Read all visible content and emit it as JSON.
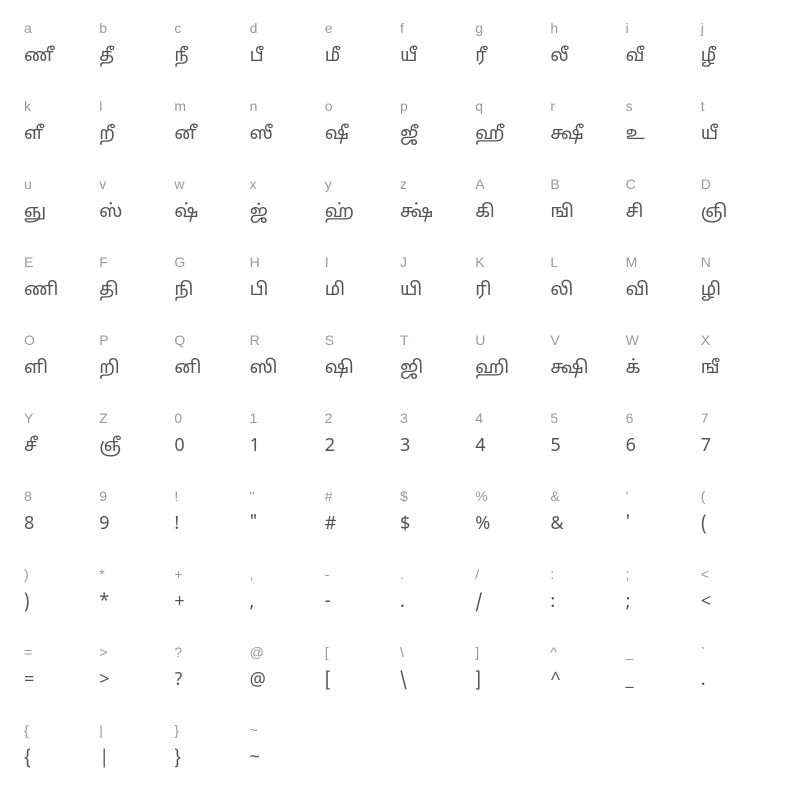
{
  "characters": [
    {
      "key": "a",
      "glyph": "ணீ"
    },
    {
      "key": "b",
      "glyph": "தீ"
    },
    {
      "key": "c",
      "glyph": "நீ"
    },
    {
      "key": "d",
      "glyph": "பீ"
    },
    {
      "key": "e",
      "glyph": "மீ"
    },
    {
      "key": "f",
      "glyph": "யீ"
    },
    {
      "key": "g",
      "glyph": "ரீ"
    },
    {
      "key": "h",
      "glyph": "லீ"
    },
    {
      "key": "i",
      "glyph": "வீ"
    },
    {
      "key": "j",
      "glyph": "ழீ"
    },
    {
      "key": "k",
      "glyph": "ளீ"
    },
    {
      "key": "l",
      "glyph": "றீ"
    },
    {
      "key": "m",
      "glyph": "னீ"
    },
    {
      "key": "n",
      "glyph": "ஸீ"
    },
    {
      "key": "o",
      "glyph": "ஷீ"
    },
    {
      "key": "p",
      "glyph": "ஜீ"
    },
    {
      "key": "q",
      "glyph": "ஹீ"
    },
    {
      "key": "r",
      "glyph": "க்ஷீ"
    },
    {
      "key": "s",
      "glyph": "உ"
    },
    {
      "key": "t",
      "glyph": "யீ"
    },
    {
      "key": "u",
      "glyph": "ஞு"
    },
    {
      "key": "v",
      "glyph": "ஸ்"
    },
    {
      "key": "w",
      "glyph": "ஷ்"
    },
    {
      "key": "x",
      "glyph": "ஜ்"
    },
    {
      "key": "y",
      "glyph": "ஹ்"
    },
    {
      "key": "z",
      "glyph": "க்ஷ்"
    },
    {
      "key": "A",
      "glyph": "கி"
    },
    {
      "key": "B",
      "glyph": "ஙி"
    },
    {
      "key": "C",
      "glyph": "சி"
    },
    {
      "key": "D",
      "glyph": "ஞி"
    },
    {
      "key": "E",
      "glyph": "ணி"
    },
    {
      "key": "F",
      "glyph": "தி"
    },
    {
      "key": "G",
      "glyph": "நி"
    },
    {
      "key": "H",
      "glyph": "பி"
    },
    {
      "key": "I",
      "glyph": "மி"
    },
    {
      "key": "J",
      "glyph": "யி"
    },
    {
      "key": "K",
      "glyph": "ரி"
    },
    {
      "key": "L",
      "glyph": "லி"
    },
    {
      "key": "M",
      "glyph": "வி"
    },
    {
      "key": "N",
      "glyph": "ழி"
    },
    {
      "key": "O",
      "glyph": "ளி"
    },
    {
      "key": "P",
      "glyph": "றி"
    },
    {
      "key": "Q",
      "glyph": "னி"
    },
    {
      "key": "R",
      "glyph": "ஸி"
    },
    {
      "key": "S",
      "glyph": "ஷி"
    },
    {
      "key": "T",
      "glyph": "ஜி"
    },
    {
      "key": "U",
      "glyph": "ஹி"
    },
    {
      "key": "V",
      "glyph": "க்ஷி"
    },
    {
      "key": "W",
      "glyph": "க்"
    },
    {
      "key": "X",
      "glyph": "ஙீ"
    },
    {
      "key": "Y",
      "glyph": "சீ"
    },
    {
      "key": "Z",
      "glyph": "ஞீ"
    },
    {
      "key": "0",
      "glyph": "0"
    },
    {
      "key": "1",
      "glyph": "1"
    },
    {
      "key": "2",
      "glyph": "2"
    },
    {
      "key": "3",
      "glyph": "3"
    },
    {
      "key": "4",
      "glyph": "4"
    },
    {
      "key": "5",
      "glyph": "5"
    },
    {
      "key": "6",
      "glyph": "6"
    },
    {
      "key": "7",
      "glyph": "7"
    },
    {
      "key": "8",
      "glyph": "8"
    },
    {
      "key": "9",
      "glyph": "9"
    },
    {
      "key": "!",
      "glyph": "!"
    },
    {
      "key": "\"",
      "glyph": "\""
    },
    {
      "key": "#",
      "glyph": "#"
    },
    {
      "key": "$",
      "glyph": "$"
    },
    {
      "key": "%",
      "glyph": "%"
    },
    {
      "key": "&",
      "glyph": "&"
    },
    {
      "key": "'",
      "glyph": "'"
    },
    {
      "key": "(",
      "glyph": "("
    },
    {
      "key": ")",
      "glyph": ")"
    },
    {
      "key": "*",
      "glyph": "*"
    },
    {
      "key": "+",
      "glyph": "+"
    },
    {
      "key": ",",
      "glyph": ","
    },
    {
      "key": "-",
      "glyph": "-"
    },
    {
      "key": ".",
      "glyph": "."
    },
    {
      "key": "/",
      "glyph": "/"
    },
    {
      "key": ":",
      "glyph": ":"
    },
    {
      "key": ";",
      "glyph": ";"
    },
    {
      "key": "<",
      "glyph": "<"
    },
    {
      "key": "=",
      "glyph": "="
    },
    {
      "key": ">",
      "glyph": ">"
    },
    {
      "key": "?",
      "glyph": "?"
    },
    {
      "key": "@",
      "glyph": "@"
    },
    {
      "key": "[",
      "glyph": "["
    },
    {
      "key": "\\",
      "glyph": "\\"
    },
    {
      "key": "]",
      "glyph": "]"
    },
    {
      "key": "^",
      "glyph": "^"
    },
    {
      "key": "_",
      "glyph": "_"
    },
    {
      "key": "`",
      "glyph": "."
    },
    {
      "key": "{",
      "glyph": "{"
    },
    {
      "key": "|",
      "glyph": "|"
    },
    {
      "key": "}",
      "glyph": "}"
    },
    {
      "key": "~",
      "glyph": "~"
    }
  ],
  "colors": {
    "key": "#9a9a9a",
    "glyph": "#555555",
    "background": "#ffffff"
  },
  "typography": {
    "key_fontsize": 14,
    "glyph_fontsize": 18
  },
  "grid": {
    "columns": 10,
    "total_cells": 100,
    "visible_cells": 94
  }
}
